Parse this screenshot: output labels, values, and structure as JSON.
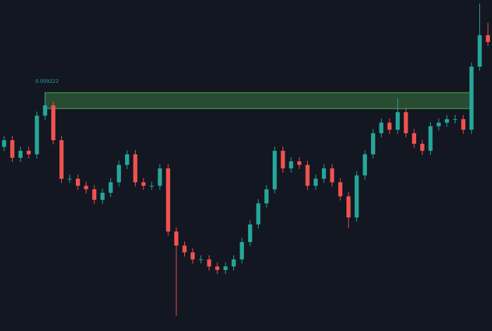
{
  "chart_data": {
    "type": "candlestick",
    "up_color": "#26a69a",
    "down_color": "#ef5350",
    "ylim": [
      0.00807,
      0.00967
    ],
    "open": [
      0.00896,
      0.008992,
      0.008907,
      0.008941,
      0.008924,
      0.009111,
      0.009161,
      0.008992,
      0.008806,
      0.008806,
      0.008772,
      0.008755,
      0.008704,
      0.008738,
      0.008789,
      0.008873,
      0.008924,
      0.008789,
      0.008772,
      0.008772,
      0.008856,
      0.008551,
      0.008483,
      0.00845,
      0.008416,
      0.008416,
      0.008382,
      0.008365,
      0.008382,
      0.008416,
      0.0085,
      0.008585,
      0.008687,
      0.008755,
      0.008941,
      0.008856,
      0.00889,
      0.008873,
      0.008772,
      0.008806,
      0.008856,
      0.008789,
      0.008721,
      0.008619,
      0.008822,
      0.008924,
      0.009026,
      0.009077,
      0.009043,
      0.009128,
      0.009026,
      0.008975,
      0.008941,
      0.00906,
      0.009077,
      0.009094,
      0.009094,
      0.009043,
      0.009348,
      0.0095
    ],
    "high": [
      0.009012,
      0.009012,
      0.008961,
      0.008961,
      0.009131,
      0.009222,
      0.009181,
      0.009012,
      0.008826,
      0.008826,
      0.008792,
      0.008775,
      0.008758,
      0.008809,
      0.008893,
      0.008944,
      0.008944,
      0.008809,
      0.008792,
      0.008876,
      0.008876,
      0.008571,
      0.008503,
      0.00847,
      0.008436,
      0.008436,
      0.008402,
      0.008402,
      0.008436,
      0.00852,
      0.008605,
      0.008707,
      0.008775,
      0.008961,
      0.008961,
      0.00891,
      0.00891,
      0.008893,
      0.008826,
      0.008876,
      0.008876,
      0.008809,
      0.008741,
      0.008842,
      0.008944,
      0.009046,
      0.009097,
      0.009097,
      0.009195,
      0.009148,
      0.009046,
      0.008995,
      0.00908,
      0.009097,
      0.009114,
      0.009114,
      0.009114,
      0.009368,
      0.009653,
      0.00956
    ],
    "low": [
      0.00894,
      0.008887,
      0.008887,
      0.008904,
      0.008904,
      0.009091,
      0.008972,
      0.008786,
      0.008786,
      0.008752,
      0.008735,
      0.008684,
      0.008684,
      0.008718,
      0.008769,
      0.008853,
      0.008769,
      0.008752,
      0.008752,
      0.008752,
      0.008531,
      0.008144,
      0.00843,
      0.008396,
      0.008396,
      0.008362,
      0.008345,
      0.008345,
      0.008362,
      0.008396,
      0.00848,
      0.008565,
      0.008667,
      0.008735,
      0.008836,
      0.008836,
      0.008853,
      0.008752,
      0.008752,
      0.008786,
      0.008769,
      0.008701,
      0.008568,
      0.008599,
      0.008802,
      0.008904,
      0.009006,
      0.009023,
      0.009023,
      0.009006,
      0.008955,
      0.008921,
      0.008921,
      0.00904,
      0.009057,
      0.009074,
      0.009023,
      0.009023,
      0.009328,
      0.009447
    ],
    "close": [
      0.008992,
      0.008907,
      0.008941,
      0.008924,
      0.009111,
      0.009161,
      0.008992,
      0.008806,
      0.008806,
      0.008772,
      0.008755,
      0.008704,
      0.008738,
      0.008789,
      0.008873,
      0.008924,
      0.008789,
      0.008772,
      0.008772,
      0.008856,
      0.008551,
      0.008483,
      0.00845,
      0.008416,
      0.008416,
      0.008382,
      0.008365,
      0.008382,
      0.008416,
      0.0085,
      0.008585,
      0.008687,
      0.008755,
      0.008941,
      0.008856,
      0.00889,
      0.008873,
      0.008772,
      0.008806,
      0.008856,
      0.008789,
      0.008721,
      0.008619,
      0.008822,
      0.008924,
      0.009026,
      0.009077,
      0.009043,
      0.009128,
      0.009026,
      0.008975,
      0.008941,
      0.00906,
      0.009077,
      0.009094,
      0.009094,
      0.009043,
      0.009348,
      0.0095,
      0.009467
    ],
    "zone": {
      "top": 0.009222,
      "bottom": 0.009145,
      "color": "#4caf50"
    }
  }
}
